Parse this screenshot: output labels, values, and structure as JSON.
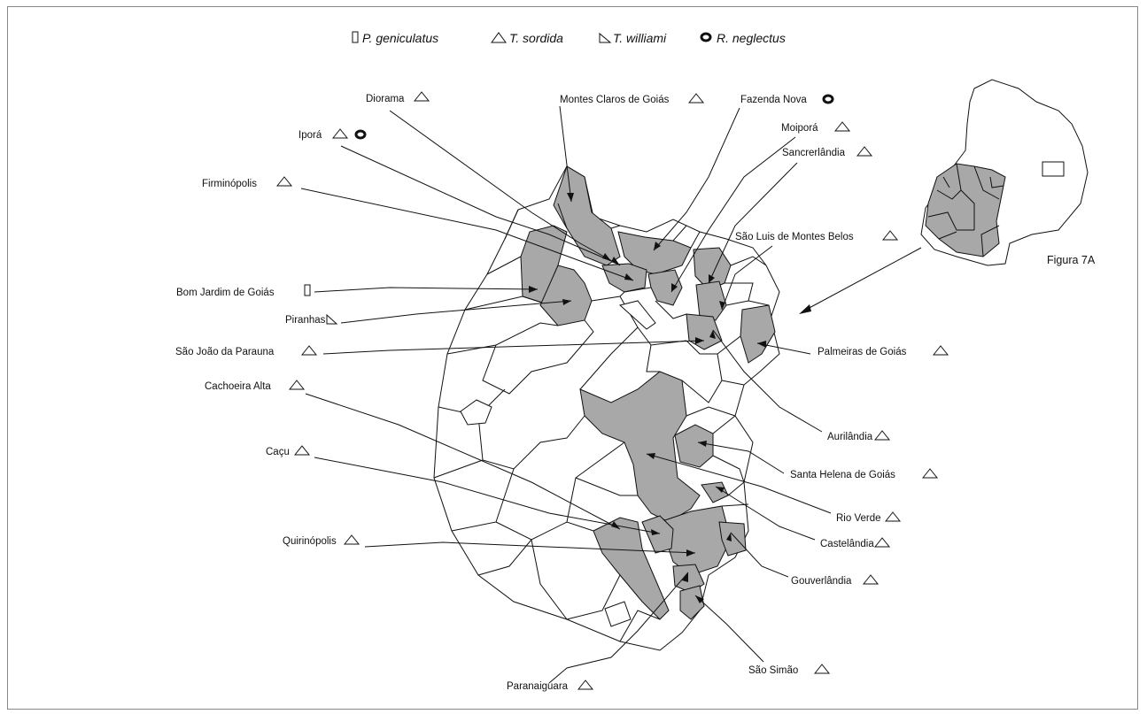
{
  "legend": [
    {
      "symbol": "rectangle",
      "species": "P. geniculatus"
    },
    {
      "symbol": "triangle",
      "species": "T. sordida"
    },
    {
      "symbol": "right-triangle",
      "species": "T. williami"
    },
    {
      "symbol": "ring",
      "species": "R. neglectus"
    }
  ],
  "figure_label": "Figura 7A",
  "municipalities": [
    {
      "name": "Diorama",
      "species": [
        "T. sordida"
      ]
    },
    {
      "name": "Montes Claros de Goiás",
      "species": [
        "T. sordida"
      ]
    },
    {
      "name": "Fazenda Nova",
      "species": [
        "R. neglectus"
      ]
    },
    {
      "name": "Moiporá",
      "species": [
        "T. sordida"
      ]
    },
    {
      "name": "Iporá",
      "species": [
        "T. sordida",
        "R. neglectus"
      ]
    },
    {
      "name": "Sancrerlândia",
      "species": [
        "T. sordida"
      ]
    },
    {
      "name": "Firminópolis",
      "species": [
        "T. sordida"
      ]
    },
    {
      "name": "São Luis de Montes Belos",
      "species": [
        "T. sordida"
      ]
    },
    {
      "name": "Bom Jardim de Goiás",
      "species": [
        "P. geniculatus"
      ]
    },
    {
      "name": "Piranhas",
      "species": [
        "T. williami"
      ]
    },
    {
      "name": "São João da Parauna",
      "species": [
        "T. sordida"
      ]
    },
    {
      "name": "Palmeiras de Goiás",
      "species": [
        "T. sordida"
      ]
    },
    {
      "name": "Cachoeira Alta",
      "species": [
        "T. sordida"
      ]
    },
    {
      "name": "Aurilândia",
      "species": [
        "T. sordida"
      ]
    },
    {
      "name": "Caçu",
      "species": [
        "T. sordida"
      ]
    },
    {
      "name": "Santa Helena de Goiás",
      "species": [
        "T. sordida"
      ]
    },
    {
      "name": "Rio Verde",
      "species": [
        "T. sordida"
      ]
    },
    {
      "name": "Quirinópolis",
      "species": [
        "T. sordida"
      ]
    },
    {
      "name": "Castelândia",
      "species": [
        "T. sordida"
      ]
    },
    {
      "name": "Gouverlândia",
      "species": [
        "T. sordida"
      ]
    },
    {
      "name": "São Simão",
      "species": [
        "T. sordida"
      ]
    },
    {
      "name": "Paranaiguara",
      "species": [
        "T. sordida"
      ]
    }
  ]
}
